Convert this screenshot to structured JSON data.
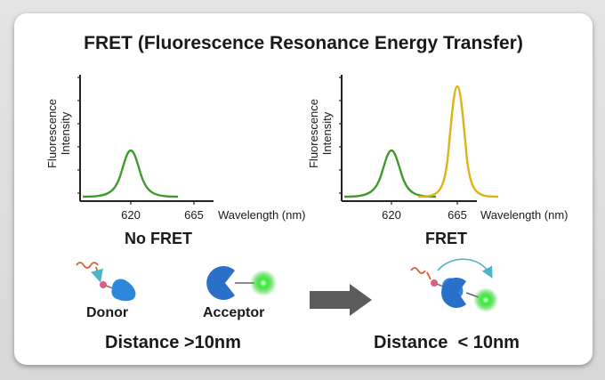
{
  "title": "FRET (Fluorescence Resonance Energy Transfer)",
  "left_chart": {
    "ylabel_1": "Fluorescence",
    "ylabel_2": "Intensity",
    "xlabel": "Wavelength (nm)",
    "ticks": [
      "620",
      "665"
    ],
    "caption": "No FRET"
  },
  "right_chart": {
    "ylabel_1": "Fluorescence",
    "ylabel_2": "Intensity",
    "xlabel": "Wavelength (nm)",
    "ticks": [
      "620",
      "665"
    ],
    "caption": "FRET"
  },
  "labels": {
    "donor": "Donor",
    "acceptor": "Acceptor",
    "distance_far": "Distance >10nm",
    "distance_near": "Distance  < 10nm"
  },
  "colors": {
    "donor_peak": "#3f9a2c",
    "acceptor_peak": "#dcb416",
    "protein_blue": "#2b7fd8",
    "glow_green": "#22dd22",
    "arrow_grey": "#5c5c5c",
    "transfer_arrow": "#4fb4c8",
    "photon_orange": "#e05a2a",
    "linker_pink": "#d86080"
  },
  "chart_data": [
    {
      "type": "line",
      "caption": "No FRET",
      "xlabel": "Wavelength (nm)",
      "ylabel": "Fluorescence Intensity",
      "x_ticks": [
        620,
        665
      ],
      "series": [
        {
          "color": "#3f9a2c",
          "peak_x": 620,
          "peak_y": 0.42
        }
      ]
    },
    {
      "type": "line",
      "caption": "FRET",
      "xlabel": "Wavelength (nm)",
      "ylabel": "Fluorescence Intensity",
      "x_ticks": [
        620,
        665
      ],
      "series": [
        {
          "color": "#3f9a2c",
          "peak_x": 620,
          "peak_y": 0.42
        },
        {
          "color": "#dcb416",
          "peak_x": 665,
          "peak_y": 0.93
        }
      ]
    }
  ]
}
